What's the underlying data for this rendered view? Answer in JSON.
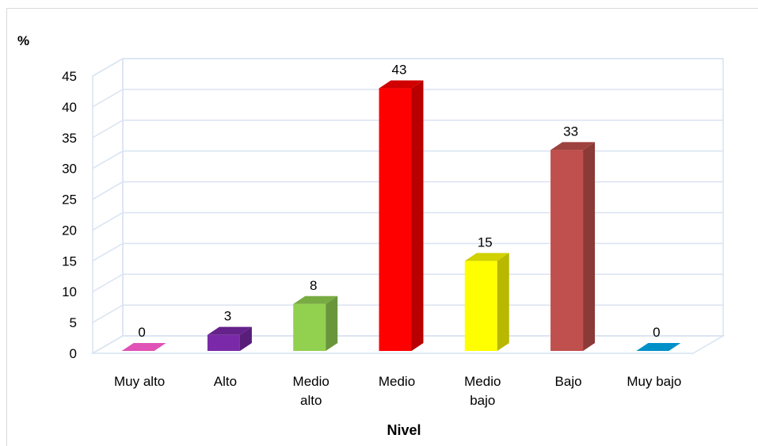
{
  "chart_data": {
    "type": "bar",
    "style": "3d-column",
    "categories": [
      "Muy alto",
      "Alto",
      "Medio alto",
      "Medio",
      "Medio bajo",
      "Bajo",
      "Muy bajo"
    ],
    "category_lines": [
      [
        "Muy alto"
      ],
      [
        "Alto"
      ],
      [
        "Medio",
        "alto"
      ],
      [
        "Medio"
      ],
      [
        "Medio",
        "bajo"
      ],
      [
        "Bajo"
      ],
      [
        "Muy bajo"
      ]
    ],
    "values": [
      0,
      3,
      8,
      43,
      15,
      33,
      0
    ],
    "data_labels": [
      "0",
      "3",
      "8",
      "43",
      "15",
      "33",
      "0"
    ],
    "colors": [
      "#e052b5",
      "#7a2aa8",
      "#92d050",
      "#ff0000",
      "#ffff00",
      "#c0504d",
      "#0090c8"
    ],
    "ylabel": "%",
    "xlabel": "Nivel",
    "ylim": [
      0,
      45
    ],
    "yticks": [
      0,
      5,
      10,
      15,
      20,
      25,
      30,
      35,
      40,
      45
    ],
    "grid": true,
    "legend": "none"
  }
}
